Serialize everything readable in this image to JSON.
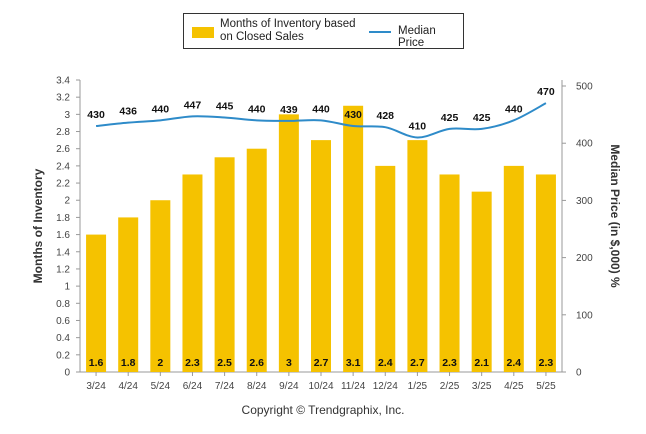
{
  "chart_data": {
    "type": "bar",
    "categories": [
      "3/24",
      "4/24",
      "5/24",
      "6/24",
      "7/24",
      "8/24",
      "9/24",
      "10/24",
      "11/24",
      "12/24",
      "1/25",
      "2/25",
      "3/25",
      "4/25",
      "5/25"
    ],
    "series": [
      {
        "name": "Months of Inventory based on Closed Sales",
        "type": "bar",
        "axis": "left",
        "values": [
          1.6,
          1.8,
          2,
          2.3,
          2.5,
          2.6,
          3,
          2.7,
          3.1,
          2.4,
          2.7,
          2.3,
          2.1,
          2.4,
          2.3
        ],
        "labels": [
          "1.6",
          "1.8",
          "2",
          "2.3",
          "2.5",
          "2.6",
          "3",
          "2.7",
          "3.1",
          "2.4",
          "2.7",
          "2.3",
          "2.1",
          "2.4",
          "2.3"
        ],
        "color": "#F5C200"
      },
      {
        "name": "Median Price",
        "type": "line",
        "axis": "right",
        "values": [
          430,
          436,
          440,
          447,
          445,
          440,
          439,
          440,
          430,
          428,
          410,
          425,
          425,
          440,
          470
        ],
        "color": "#2E8BC9"
      }
    ],
    "ylabel": "Months of Inventory",
    "y2label": "Median Price (in $,000) %",
    "ylim": [
      0,
      3.4
    ],
    "y2lim": [
      0,
      500
    ],
    "yticks": [
      "0",
      "0.2",
      "0.4",
      "0.6",
      "0.8",
      "1",
      "1.2",
      "1.4",
      "1.6",
      "1.8",
      "2",
      "2.2",
      "2.4",
      "2.6",
      "2.8",
      "3",
      "3.2",
      "3.4"
    ],
    "y2ticks": [
      "0",
      "100",
      "200",
      "300",
      "400",
      "500"
    ],
    "grid": false,
    "legend_position": "top"
  },
  "legend": {
    "bar_label": "Months of Inventory based on Closed Sales",
    "line_label": "Median Price"
  },
  "copyright": "Copyright © Trendgraphix, Inc."
}
